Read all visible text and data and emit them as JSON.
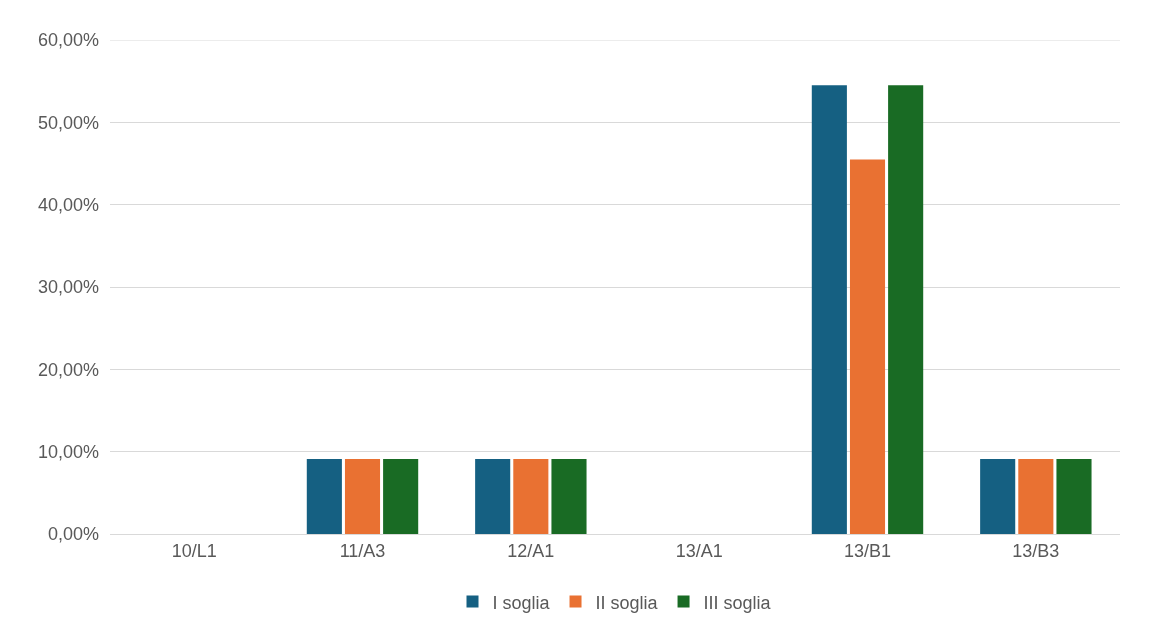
{
  "chart_data": {
    "type": "bar",
    "categories": [
      "10/L1",
      "11/A3",
      "12/A1",
      "13/A1",
      "13/B1",
      "13/B3"
    ],
    "series": [
      {
        "name": "I soglia",
        "color": "#156082",
        "values": [
          0,
          9.1,
          9.1,
          0,
          54.5,
          9.1
        ]
      },
      {
        "name": "II soglia",
        "color": "#e97132",
        "values": [
          0,
          9.1,
          9.1,
          0,
          45.5,
          9.1
        ]
      },
      {
        "name": "III soglia",
        "color": "#196b24",
        "values": [
          0,
          9.1,
          9.1,
          0,
          54.5,
          9.1
        ]
      }
    ],
    "ylim": [
      0,
      60
    ],
    "yticks": [
      {
        "value": 0,
        "label": "0,00%"
      },
      {
        "value": 10,
        "label": "10,00%"
      },
      {
        "value": 20,
        "label": "20,00%"
      },
      {
        "value": 30,
        "label": "30,00%"
      },
      {
        "value": 40,
        "label": "40,00%"
      },
      {
        "value": 50,
        "label": "50,00%"
      },
      {
        "value": 60,
        "label": "60,00%"
      }
    ],
    "grid": "y",
    "legend": "bottom"
  }
}
